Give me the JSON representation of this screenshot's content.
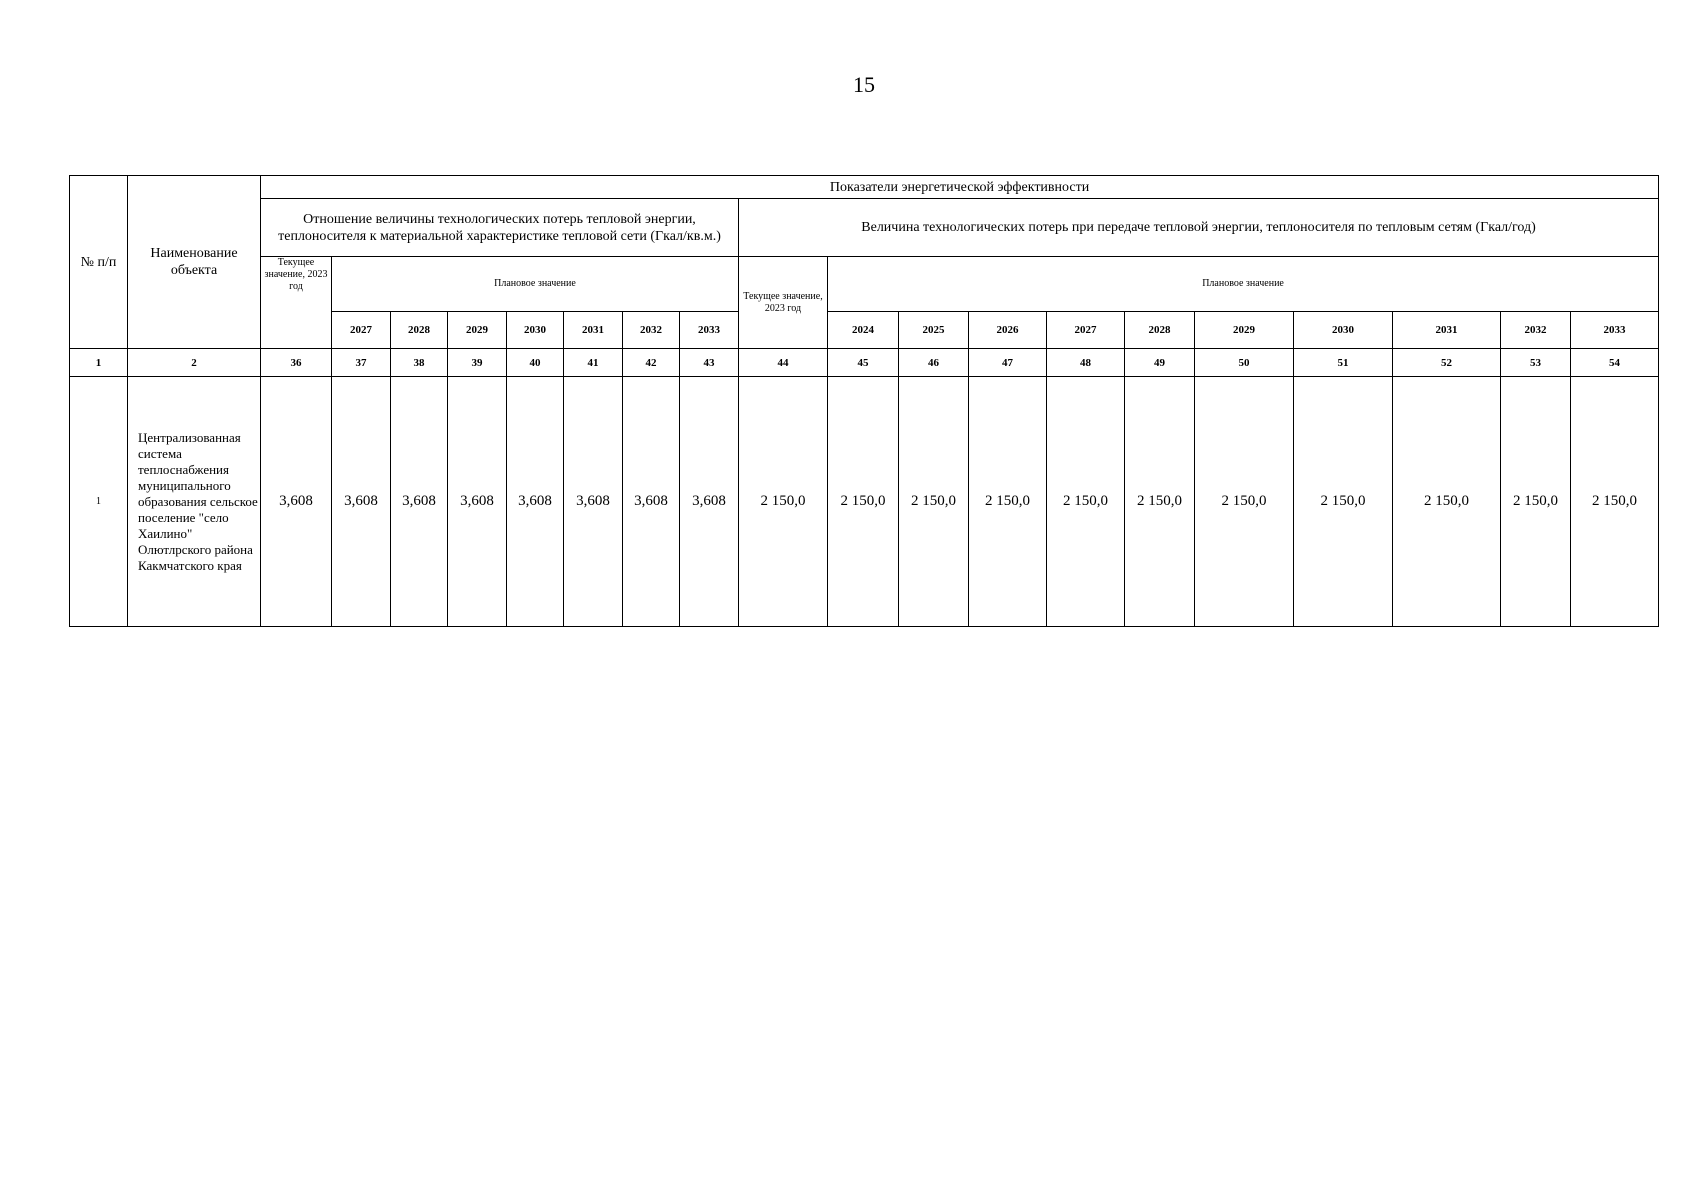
{
  "page_number": "15",
  "header": {
    "num": "№ п/п",
    "name": "Наименование объекта",
    "group": "Показатели энергетической эффективности",
    "sub1": "Отношение величины технологических потерь тепловой энергии, теплоносителя к материальной характеристике тепловой сети (Гкал/кв.м.)",
    "sub2": "Величина технологических потерь при передаче тепловой энергии, теплоносителя по тепловым сетям (Гкал/год)",
    "current1": "Текущее значение, 2023 год",
    "planned1": "Плановое значение",
    "current2": "Текущее значение, 2023 год",
    "planned2": "Плановое значение",
    "years1": [
      "2027",
      "2028",
      "2029",
      "2030",
      "2031",
      "2032",
      "2033"
    ],
    "years2": [
      "2024",
      "2025",
      "2026",
      "2027",
      "2028",
      "2029",
      "2030",
      "2031",
      "2032",
      "2033"
    ]
  },
  "col_numbers": [
    "1",
    "2",
    "36",
    "37",
    "38",
    "39",
    "40",
    "41",
    "42",
    "43",
    "44",
    "45",
    "46",
    "47",
    "48",
    "49",
    "50",
    "51",
    "52",
    "53",
    "54"
  ],
  "rows": [
    {
      "num": "1",
      "name": "Централизованная система теплоснабжения муниципального образования сельское поселение \"село Хаилино\" Олютлрского района Какмчатского края",
      "values": [
        "3,608",
        "3,608",
        "3,608",
        "3,608",
        "3,608",
        "3,608",
        "3,608",
        "3,608",
        "2 150,0",
        "2 150,0",
        "2 150,0",
        "2 150,0",
        "2 150,0",
        "2 150,0",
        "2 150,0",
        "2 150,0",
        "2 150,0",
        "2 150,0",
        "2 150,0"
      ]
    }
  ]
}
